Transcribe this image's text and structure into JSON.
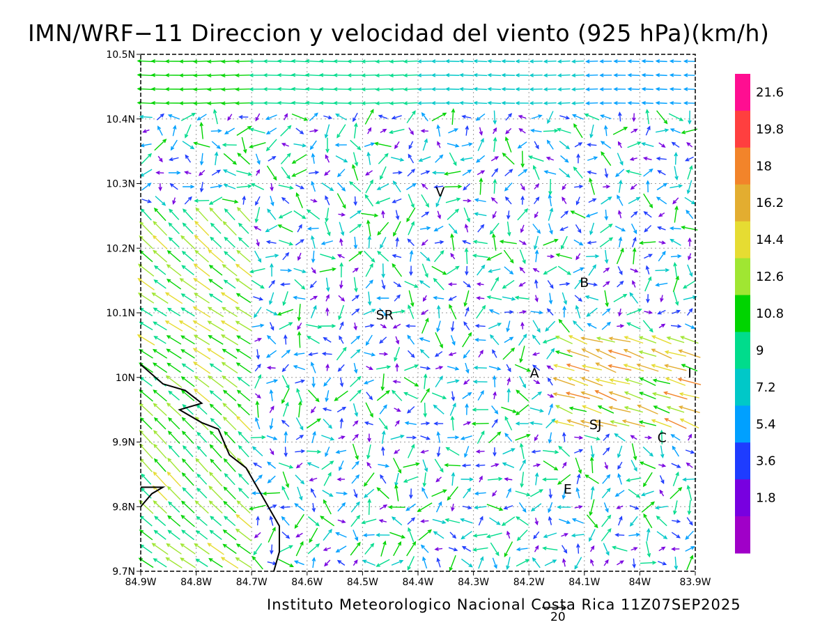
{
  "title": "IMN/WRF−11 Direccion y velocidad del viento (925 hPa)(km/h)",
  "footer": "Instituto Meteorologico Nacional Costa Rica 11Z07SEP2025",
  "reference_vector_label": "20",
  "axes": {
    "lon_ticks": [
      "84.9W",
      "84.8W",
      "84.7W",
      "84.6W",
      "84.5W",
      "84.4W",
      "84.3W",
      "84.2W",
      "84.1W",
      "84W",
      "83.9W"
    ],
    "lat_ticks": [
      "10.5N",
      "10.4N",
      "10.3N",
      "10.2N",
      "10.1N",
      "10N",
      "9.9N",
      "9.8N",
      "9.7N"
    ],
    "lon_range": [
      -84.9,
      -83.9
    ],
    "lat_range": [
      9.7,
      10.5
    ],
    "grid": "dotted"
  },
  "colorbar": {
    "labels": [
      "21.6",
      "19.8",
      "18",
      "16.2",
      "14.4",
      "12.6",
      "10.8",
      "9",
      "7.2",
      "5.4",
      "3.6",
      "1.8"
    ],
    "colors": [
      "#ff0e91",
      "#ff3f3f",
      "#f2842a",
      "#e3ad30",
      "#e6dc32",
      "#a0e632",
      "#00d400",
      "#00dc8c",
      "#00c8c8",
      "#00a0ff",
      "#1e3cff",
      "#7800e0",
      "#a000c8"
    ]
  },
  "map_labels": [
    {
      "text": "V",
      "lon": -84.36,
      "lat": 10.28
    },
    {
      "text": "B",
      "lon": -84.1,
      "lat": 10.14
    },
    {
      "text": "SR",
      "lon": -84.46,
      "lat": 10.09
    },
    {
      "text": "A",
      "lon": -84.19,
      "lat": 10.0
    },
    {
      "text": "I",
      "lon": -83.91,
      "lat": 10.0
    },
    {
      "text": "SJ",
      "lon": -84.08,
      "lat": 9.92
    },
    {
      "text": "C",
      "lon": -83.96,
      "lat": 9.9
    },
    {
      "text": "E",
      "lon": -84.13,
      "lat": 9.82
    }
  ],
  "coastline": [
    [
      -84.9,
      10.02
    ],
    [
      -84.86,
      9.99
    ],
    [
      -84.82,
      9.98
    ],
    [
      -84.79,
      9.96
    ],
    [
      -84.83,
      9.95
    ],
    [
      -84.79,
      9.93
    ],
    [
      -84.76,
      9.92
    ],
    [
      -84.74,
      9.88
    ],
    [
      -84.71,
      9.86
    ],
    [
      -84.69,
      9.83
    ],
    [
      -84.67,
      9.8
    ],
    [
      -84.65,
      9.77
    ],
    [
      -84.65,
      9.73
    ],
    [
      -84.66,
      9.7
    ]
  ],
  "coastline_spit": [
    [
      -84.9,
      9.8
    ],
    [
      -84.88,
      9.82
    ],
    [
      -84.86,
      9.83
    ],
    [
      -84.9,
      9.83
    ]
  ]
}
